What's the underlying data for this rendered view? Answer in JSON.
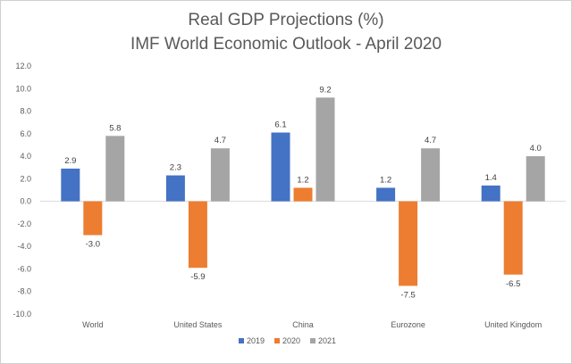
{
  "chart_data": {
    "type": "bar",
    "title": "Real GDP Projections (%)",
    "subtitle": "IMF World Economic Outlook - April 2020",
    "categories": [
      "World",
      "United States",
      "China",
      "Eurozone",
      "United Kingdom"
    ],
    "series": [
      {
        "name": "2019",
        "color": "#4472C4",
        "values": [
          2.9,
          2.3,
          6.1,
          1.2,
          1.4
        ]
      },
      {
        "name": "2020",
        "color": "#ED7D31",
        "values": [
          -3.0,
          -5.9,
          1.2,
          -7.5,
          -6.5
        ]
      },
      {
        "name": "2021",
        "color": "#A5A5A5",
        "values": [
          5.8,
          4.7,
          9.2,
          4.7,
          4.0
        ]
      }
    ],
    "ylim": [
      -10.0,
      12.0
    ],
    "yticks": [
      12.0,
      10.0,
      8.0,
      6.0,
      4.0,
      2.0,
      0.0,
      -2.0,
      -4.0,
      -6.0,
      -8.0,
      -10.0
    ],
    "ytick_labels": [
      "12.0",
      "10.0",
      "8.0",
      "6.0",
      "4.0",
      "2.0",
      "0.0",
      "-2.0",
      "-4.0",
      "-6.0",
      "-8.0",
      "-10.0"
    ],
    "grid": false,
    "legend_position": "bottom-center"
  }
}
